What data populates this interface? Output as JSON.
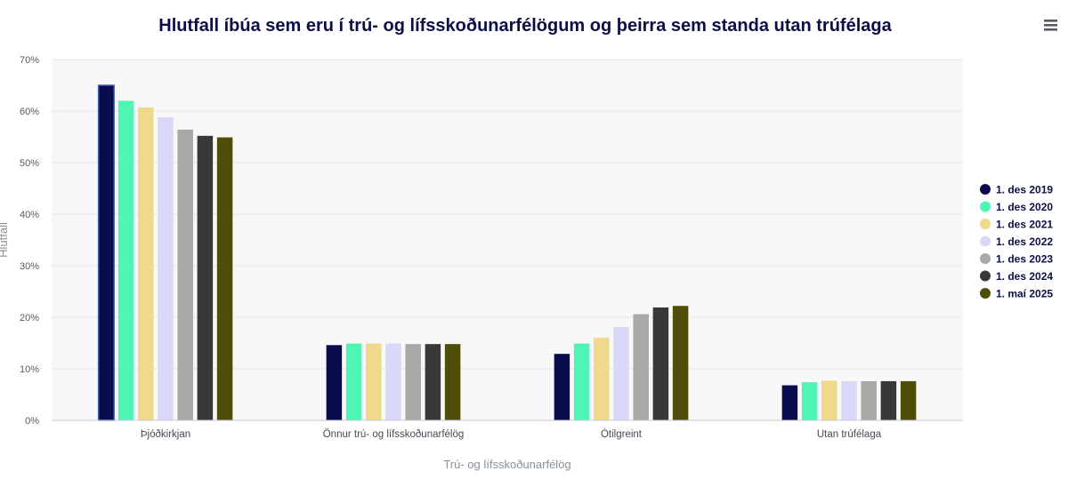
{
  "menu_icon": "hamburger-menu-icon",
  "chart_data": {
    "type": "bar",
    "title": "Hlutfall íbúa sem eru í trú- og lífsskoðunarfélögum og þeirra sem standa utan trúfélaga",
    "xlabel": "Trú- og lífsskoðunarfélög",
    "ylabel": "Hlutfall",
    "ylim": [
      0,
      70
    ],
    "yticks": [
      "0%",
      "10%",
      "20%",
      "30%",
      "40%",
      "50%",
      "60%",
      "70%"
    ],
    "grid": true,
    "legend_position": "right",
    "categories": [
      "Þjóðkirkjan",
      "Önnur trú- og lífsskoðunarfélög",
      "Ótilgreint",
      "Utan trúfélaga"
    ],
    "series": [
      {
        "name": "1. des 2019",
        "color": "#0b0c4f",
        "values": [
          65.0,
          14.6,
          12.9,
          6.8
        ]
      },
      {
        "name": "1. des 2020",
        "color": "#4ef5b5",
        "values": [
          62.0,
          14.9,
          14.9,
          7.4
        ]
      },
      {
        "name": "1. des 2021",
        "color": "#f0d98a",
        "values": [
          60.7,
          14.9,
          16.0,
          7.7
        ]
      },
      {
        "name": "1. des 2022",
        "color": "#d9d8f8",
        "values": [
          58.8,
          14.9,
          18.1,
          7.6
        ]
      },
      {
        "name": "1. des 2023",
        "color": "#a8a8a8",
        "values": [
          56.4,
          14.8,
          20.6,
          7.6
        ]
      },
      {
        "name": "1. des 2024",
        "color": "#383838",
        "values": [
          55.2,
          14.8,
          21.9,
          7.6
        ]
      },
      {
        "name": "1. maí 2025",
        "color": "#4e4e08",
        "values": [
          54.9,
          14.8,
          22.2,
          7.6
        ]
      }
    ]
  }
}
